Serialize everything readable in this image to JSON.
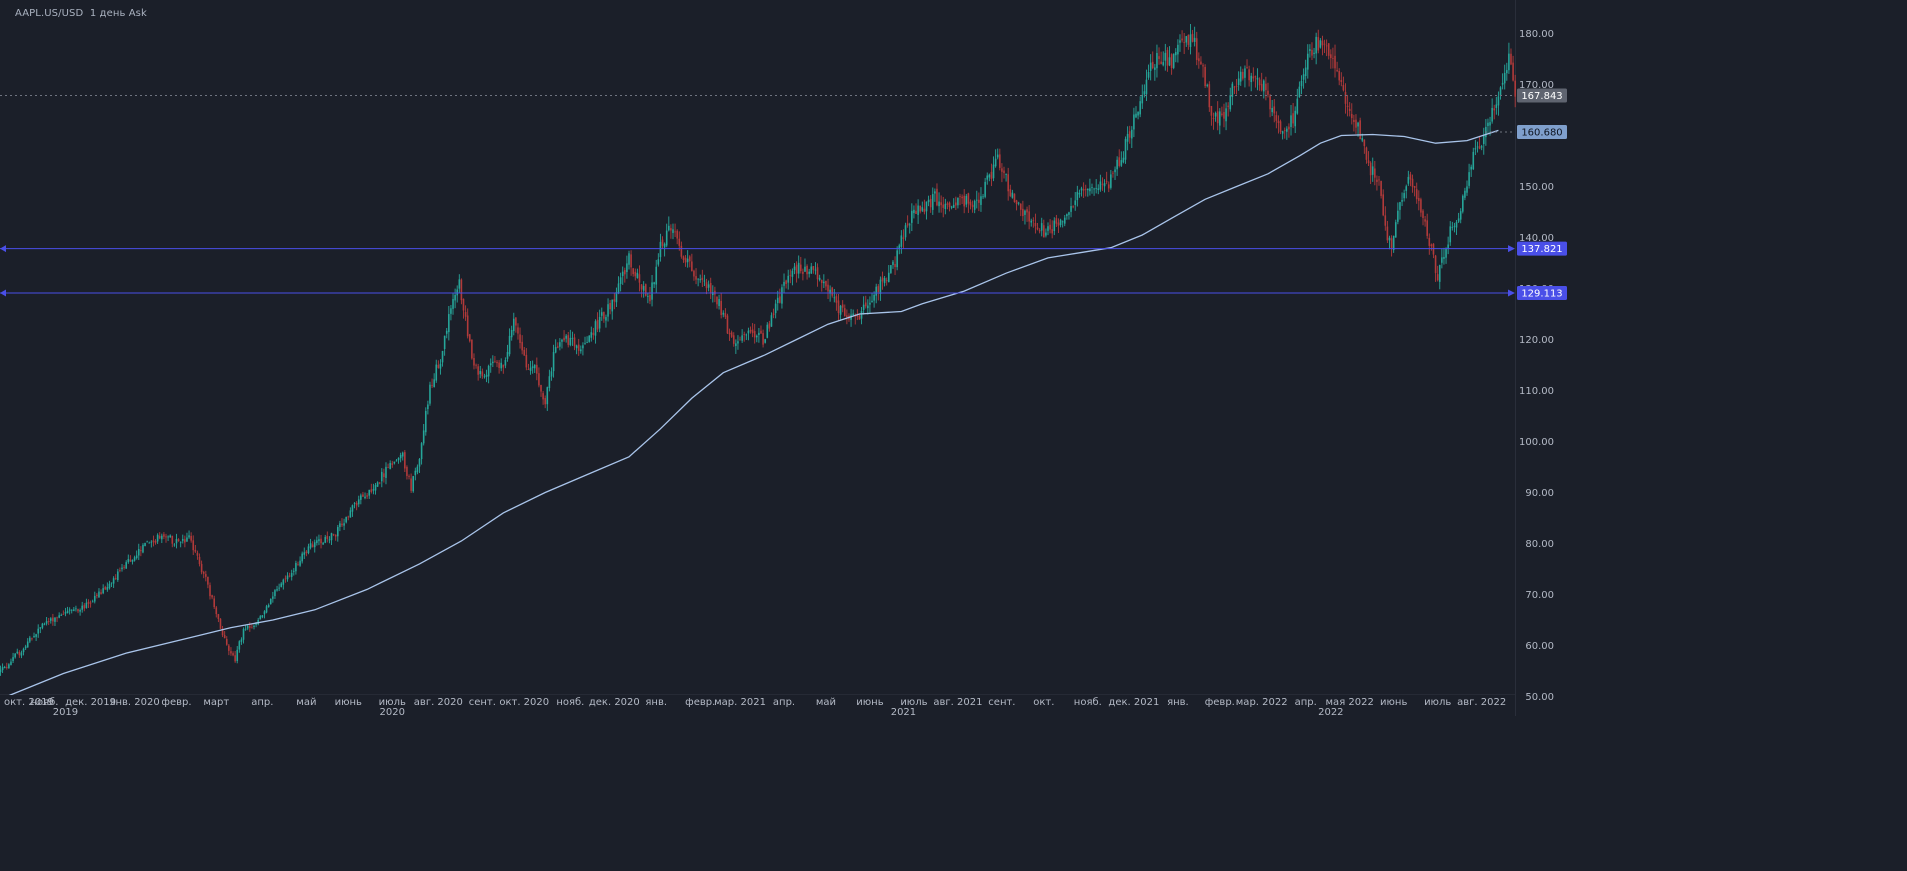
{
  "header": {
    "symbol": "AAPL.US/USD",
    "interval": "1 день",
    "price_type": "Ask"
  },
  "colors": {
    "background": "#1b1f29",
    "up_candle": "#26a69a",
    "down_candle": "#b23a3a",
    "moving_average": "#a9c4ea",
    "horizontal_line": "#4a4fe8",
    "last_price_marker": "#5f6470",
    "ma_marker": "#7f9fcc",
    "axis_text": "#b4bac6"
  },
  "chart_data": {
    "type": "candlestick",
    "title": "",
    "ylim": [
      50,
      185
    ],
    "x_ticks": [
      {
        "label": "окт. 2019",
        "t": 0.5
      },
      {
        "label": "нояб.",
        "t": 21
      },
      {
        "label": "дек. 2019",
        "t": 43
      },
      {
        "label": "янв. 2020",
        "t": 64
      },
      {
        "label": "февр.",
        "t": 84
      },
      {
        "label": "март",
        "t": 103
      },
      {
        "label": "апр.",
        "t": 125
      },
      {
        "label": "май",
        "t": 146
      },
      {
        "label": "июнь",
        "t": 166
      },
      {
        "label": "июль",
        "t": 187
      },
      {
        "label": "авг. 2020",
        "t": 209
      },
      {
        "label": "сент.",
        "t": 230
      },
      {
        "label": "окт. 2020",
        "t": 250
      },
      {
        "label": "нояб.",
        "t": 272
      },
      {
        "label": "дек. 2020",
        "t": 293
      },
      {
        "label": "янв.",
        "t": 313
      },
      {
        "label": "февр.",
        "t": 334
      },
      {
        "label": "мар. 2021",
        "t": 353
      },
      {
        "label": "апр.",
        "t": 374
      },
      {
        "label": "май",
        "t": 394
      },
      {
        "label": "июнь",
        "t": 415
      },
      {
        "label": "июль",
        "t": 436
      },
      {
        "label": "авг. 2021",
        "t": 457
      },
      {
        "label": "сент.",
        "t": 478
      },
      {
        "label": "окт.",
        "t": 498
      },
      {
        "label": "нояб.",
        "t": 519
      },
      {
        "label": "дек. 2021",
        "t": 541
      },
      {
        "label": "янв.",
        "t": 562
      },
      {
        "label": "февр.",
        "t": 582
      },
      {
        "label": "мар. 2022",
        "t": 602
      },
      {
        "label": "апр.",
        "t": 623
      },
      {
        "label": "мая 2022",
        "t": 644
      },
      {
        "label": "июнь",
        "t": 665
      },
      {
        "label": "июль",
        "t": 686
      },
      {
        "label": "авг. 2022",
        "t": 707
      }
    ],
    "year_labels": [
      {
        "label": "2019",
        "t": 31
      },
      {
        "label": "2020",
        "t": 187
      },
      {
        "label": "2021",
        "t": 431
      },
      {
        "label": "2022",
        "t": 635
      }
    ],
    "y_ticks": [
      60,
      70,
      80,
      90,
      100,
      110,
      120,
      130,
      140,
      150,
      160,
      170,
      180
    ],
    "y_tick_labels": [
      "60.00",
      "70.00",
      "80.00",
      "90.00",
      "100.00",
      "110.00",
      "120.00",
      "130.00",
      "140.00",
      "150.00",
      "160.00",
      "170.00",
      "180.00"
    ],
    "last_price": {
      "value": 167.843,
      "label": "167.843"
    },
    "moving_average": {
      "value": 160.68,
      "label": "160.680",
      "points": [
        [
          0,
          49.5
        ],
        [
          30,
          54.5
        ],
        [
          60,
          58.5
        ],
        [
          90,
          61.5
        ],
        [
          110,
          63.5
        ],
        [
          130,
          65
        ],
        [
          150,
          67
        ],
        [
          175,
          71
        ],
        [
          200,
          76
        ],
        [
          220,
          80.5
        ],
        [
          240,
          86
        ],
        [
          260,
          90
        ],
        [
          280,
          93.5
        ],
        [
          300,
          97
        ],
        [
          315,
          102.5
        ],
        [
          330,
          108.5
        ],
        [
          345,
          113.5
        ],
        [
          365,
          117
        ],
        [
          380,
          120
        ],
        [
          395,
          123
        ],
        [
          410,
          125
        ],
        [
          430,
          125.5
        ],
        [
          440,
          127
        ],
        [
          460,
          129.5
        ],
        [
          480,
          133
        ],
        [
          500,
          136
        ],
        [
          515,
          137
        ],
        [
          530,
          138
        ],
        [
          545,
          140.5
        ],
        [
          560,
          144
        ],
        [
          575,
          147.5
        ],
        [
          590,
          150
        ],
        [
          605,
          152.5
        ],
        [
          620,
          156
        ],
        [
          630,
          158.5
        ],
        [
          640,
          160
        ],
        [
          655,
          160.2
        ],
        [
          670,
          159.8
        ],
        [
          685,
          158.5
        ],
        [
          700,
          159
        ],
        [
          715,
          161
        ]
      ]
    },
    "horizontal_lines": [
      {
        "value": 137.821,
        "label": "137.821"
      },
      {
        "value": 129.113,
        "label": "129.113"
      }
    ],
    "price_path": [
      [
        0,
        55
      ],
      [
        10,
        59
      ],
      [
        20,
        64
      ],
      [
        30,
        66.5
      ],
      [
        40,
        67.5
      ],
      [
        50,
        71
      ],
      [
        60,
        76
      ],
      [
        70,
        80
      ],
      [
        78,
        81.5
      ],
      [
        85,
        80
      ],
      [
        90,
        81
      ],
      [
        98,
        73
      ],
      [
        103,
        66
      ],
      [
        108,
        60
      ],
      [
        112,
        57.5
      ],
      [
        116,
        63
      ],
      [
        120,
        63.5
      ],
      [
        125,
        66
      ],
      [
        130,
        70
      ],
      [
        140,
        75
      ],
      [
        145,
        78.5
      ],
      [
        150,
        80
      ],
      [
        160,
        82
      ],
      [
        170,
        88
      ],
      [
        180,
        92
      ],
      [
        187,
        96
      ],
      [
        192,
        97
      ],
      [
        196,
        91
      ],
      [
        200,
        97
      ],
      [
        205,
        111
      ],
      [
        210,
        116
      ],
      [
        215,
        126
      ],
      [
        219,
        131
      ],
      [
        225,
        117
      ],
      [
        230,
        112
      ],
      [
        235,
        115
      ],
      [
        240,
        115
      ],
      [
        245,
        124
      ],
      [
        250,
        116
      ],
      [
        255,
        114
      ],
      [
        260,
        108
      ],
      [
        265,
        119
      ],
      [
        270,
        120
      ],
      [
        278,
        118
      ],
      [
        283,
        122
      ],
      [
        290,
        126
      ],
      [
        295,
        130
      ],
      [
        300,
        136
      ],
      [
        305,
        131
      ],
      [
        310,
        128
      ],
      [
        315,
        138
      ],
      [
        320,
        142
      ],
      [
        327,
        135
      ],
      [
        334,
        132
      ],
      [
        342,
        128
      ],
      [
        348,
        121
      ],
      [
        352,
        119
      ],
      [
        358,
        121
      ],
      [
        364,
        120
      ],
      [
        370,
        126
      ],
      [
        376,
        133
      ],
      [
        382,
        134
      ],
      [
        388,
        133
      ],
      [
        394,
        130
      ],
      [
        400,
        126
      ],
      [
        405,
        125
      ],
      [
        410,
        124.5
      ],
      [
        414,
        127
      ],
      [
        420,
        131
      ],
      [
        426,
        134
      ],
      [
        433,
        143
      ],
      [
        440,
        146
      ],
      [
        446,
        148
      ],
      [
        452,
        146
      ],
      [
        458,
        148
      ],
      [
        464,
        146
      ],
      [
        470,
        150
      ],
      [
        476,
        155
      ],
      [
        482,
        149
      ],
      [
        488,
        145
      ],
      [
        494,
        142
      ],
      [
        500,
        141
      ],
      [
        506,
        144
      ],
      [
        512,
        147
      ],
      [
        518,
        149
      ],
      [
        524,
        151
      ],
      [
        530,
        151
      ],
      [
        536,
        157
      ],
      [
        542,
        165
      ],
      [
        548,
        172
      ],
      [
        553,
        176
      ],
      [
        558,
        174
      ],
      [
        563,
        177
      ],
      [
        568,
        180
      ],
      [
        573,
        174
      ],
      [
        578,
        165
      ],
      [
        583,
        163
      ],
      [
        588,
        170
      ],
      [
        593,
        172
      ],
      [
        600,
        171
      ],
      [
        604,
        169
      ],
      [
        608,
        164
      ],
      [
        613,
        161
      ],
      [
        618,
        164
      ],
      [
        623,
        174
      ],
      [
        628,
        178
      ],
      [
        633,
        178
      ],
      [
        638,
        174
      ],
      [
        643,
        166
      ],
      [
        648,
        162
      ],
      [
        653,
        154
      ],
      [
        658,
        151
      ],
      [
        661,
        142
      ],
      [
        664,
        138
      ],
      [
        668,
        146
      ],
      [
        672,
        153
      ],
      [
        678,
        146
      ],
      [
        682,
        139
      ],
      [
        686,
        132
      ],
      [
        692,
        141
      ],
      [
        697,
        146
      ],
      [
        702,
        155
      ],
      [
        708,
        160
      ],
      [
        712,
        165
      ],
      [
        717,
        170
      ],
      [
        720,
        175
      ],
      [
        723,
        168
      ]
    ]
  }
}
